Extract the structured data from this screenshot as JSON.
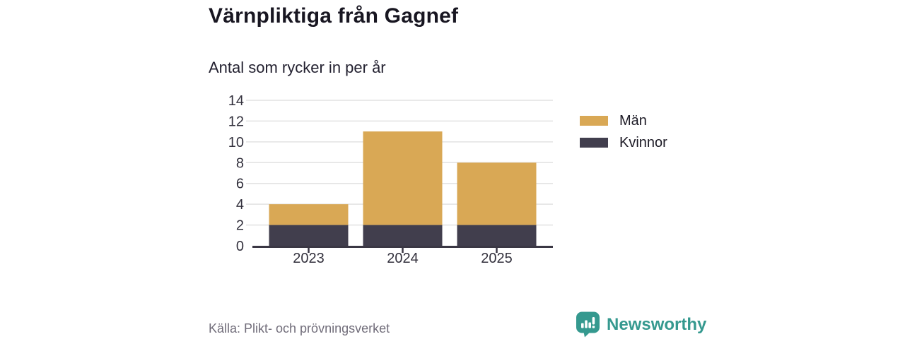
{
  "header": {
    "title": "Värnpliktiga från Gagnef",
    "subtitle": "Antal som rycker in per år"
  },
  "chart_data": {
    "type": "bar",
    "stacked": true,
    "title": "Värnpliktiga från Gagnef",
    "subtitle": "Antal som rycker in per år",
    "categories": [
      "2023",
      "2024",
      "2025"
    ],
    "series": [
      {
        "name": "Kvinnor",
        "color": "#413e4d",
        "values": [
          2,
          2,
          2
        ]
      },
      {
        "name": "Män",
        "color": "#d9a855",
        "values": [
          2,
          9,
          6
        ]
      }
    ],
    "totals": [
      4,
      11,
      8
    ],
    "xlabel": "",
    "ylabel": "",
    "ylim": [
      0,
      14
    ],
    "yticks": [
      0,
      2,
      4,
      6,
      8,
      10,
      12,
      14
    ],
    "grid": true,
    "legend_position": "right",
    "legend_order": [
      "Män",
      "Kvinnor"
    ]
  },
  "legend": {
    "items": [
      {
        "label": "Män",
        "color": "#d9a855"
      },
      {
        "label": "Kvinnor",
        "color": "#413e4d"
      }
    ]
  },
  "footer": {
    "source": "Källa: Plikt- och prövningsverket",
    "brand": "Newsworthy",
    "brand_color": "#35998f"
  },
  "colors": {
    "men_bar": "#d9a855",
    "women_bar": "#413e4d",
    "axis": "#3a3744",
    "gridline": "#e2e2e2",
    "tick_label": "#33313d",
    "title": "#181621",
    "source": "#716d7a",
    "brand": "#35998f",
    "background": "#ffffff"
  }
}
